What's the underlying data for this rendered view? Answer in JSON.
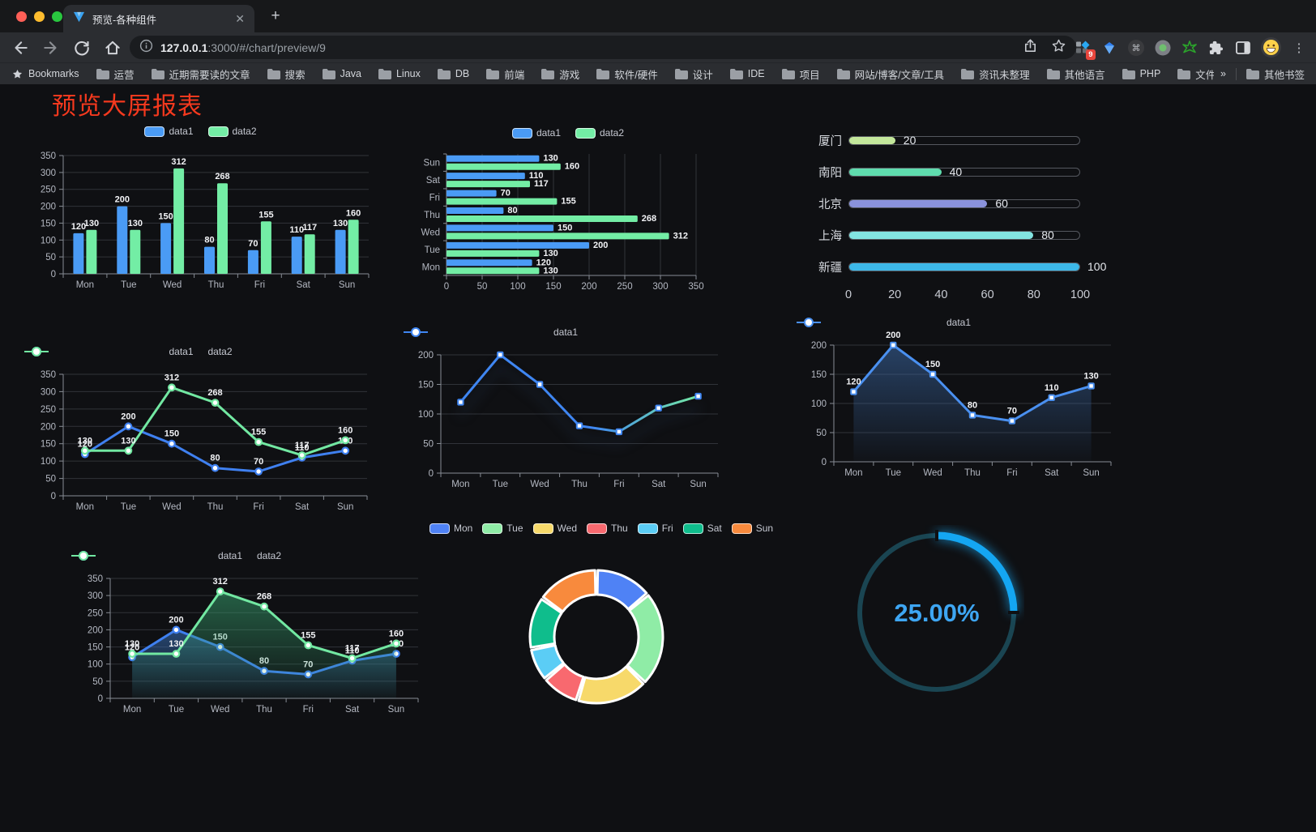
{
  "browser": {
    "tab_title": "预览-各种组件",
    "url_host": "127.0.0.1",
    "url_rest": ":3000/#/chart/preview/9",
    "extension_badge": "9",
    "bookmarks_label": "Bookmarks",
    "bookmarks": [
      "运营",
      "近期需要读的文章",
      "搜索",
      "Java",
      "Linux",
      "DB",
      "前端",
      "游戏",
      "软件/硬件",
      "设计",
      "IDE",
      "项目",
      "网站/博客/文章/工具",
      "资讯未整理",
      "其他语言",
      "PHP",
      "文件服务器"
    ],
    "bookmarks_overflow": "»",
    "other_bookmarks": "其他书签"
  },
  "page": {
    "title": "预览大屏报表",
    "title_color": "#f5391e",
    "background": "#0f1013"
  },
  "chart_data": [
    {
      "id": "bar1",
      "type": "bar",
      "legend": true,
      "categories": [
        "Mon",
        "Tue",
        "Wed",
        "Thu",
        "Fri",
        "Sat",
        "Sun"
      ],
      "series": [
        {
          "name": "data1",
          "color": "#4a9bf5",
          "values": [
            120,
            200,
            150,
            80,
            70,
            110,
            130
          ]
        },
        {
          "name": "data2",
          "color": "#73eda5",
          "values": [
            130,
            130,
            312,
            268,
            155,
            117,
            160
          ]
        }
      ],
      "ylim": [
        0,
        350
      ],
      "ystep": 50,
      "value_labels": true
    },
    {
      "id": "hbar1",
      "type": "hbar",
      "legend": true,
      "categories": [
        "Mon",
        "Tue",
        "Wed",
        "Thu",
        "Fri",
        "Sat",
        "Sun"
      ],
      "series": [
        {
          "name": "data1",
          "color": "#4a9bf5",
          "values": [
            120,
            200,
            150,
            80,
            70,
            110,
            130
          ]
        },
        {
          "name": "data2",
          "color": "#73eda5",
          "values": [
            130,
            130,
            312,
            268,
            155,
            117,
            160
          ]
        }
      ],
      "xlim": [
        0,
        350
      ],
      "xstep": 50,
      "value_labels": true
    },
    {
      "id": "progress1",
      "type": "progress",
      "max": 100,
      "axis_ticks": [
        0,
        20,
        40,
        60,
        80,
        100
      ],
      "items": [
        {
          "label": "厦门",
          "value": 20,
          "color": "#c3e79b"
        },
        {
          "label": "南阳",
          "value": 40,
          "color": "#5fdcae"
        },
        {
          "label": "北京",
          "value": 60,
          "color": "#8a92dc"
        },
        {
          "label": "上海",
          "value": 80,
          "color": "#83e4e1"
        },
        {
          "label": "新疆",
          "value": 100,
          "color": "#3db8e8"
        }
      ]
    },
    {
      "id": "line2",
      "type": "line",
      "legend": true,
      "markers": "circle",
      "categories": [
        "Mon",
        "Tue",
        "Wed",
        "Thu",
        "Fri",
        "Sat",
        "Sun"
      ],
      "series": [
        {
          "name": "data1",
          "color": "#3f80f0",
          "values": [
            120,
            200,
            150,
            80,
            70,
            110,
            130
          ]
        },
        {
          "name": "data2",
          "color": "#72e8a2",
          "values": [
            130,
            130,
            312,
            268,
            155,
            117,
            160
          ]
        }
      ],
      "ylim": [
        0,
        350
      ],
      "ystep": 50,
      "value_labels": true
    },
    {
      "id": "gradline",
      "type": "line",
      "legend": true,
      "markers": "rect",
      "shadow": true,
      "categories": [
        "Mon",
        "Tue",
        "Wed",
        "Thu",
        "Fri",
        "Sat",
        "Sun"
      ],
      "series": [
        {
          "name": "data1",
          "color": "#3f86f2",
          "gradient": [
            "#3f86f2",
            "#74e9a4"
          ],
          "values": [
            120,
            200,
            150,
            80,
            70,
            110,
            130
          ]
        }
      ],
      "ylim": [
        0,
        200
      ],
      "ystep": 50,
      "value_labels": false
    },
    {
      "id": "area1",
      "type": "line",
      "legend": true,
      "markers": "rect",
      "area": true,
      "categories": [
        "Mon",
        "Tue",
        "Wed",
        "Thu",
        "Fri",
        "Sat",
        "Sun"
      ],
      "series": [
        {
          "name": "data1",
          "color": "#4a90f0",
          "area_color": "#3c6aa8",
          "values": [
            120,
            200,
            150,
            80,
            70,
            110,
            130
          ]
        }
      ],
      "ylim": [
        0,
        200
      ],
      "ystep": 50,
      "value_labels": true
    },
    {
      "id": "area2",
      "type": "line",
      "legend": true,
      "markers": "circle",
      "area": true,
      "categories": [
        "Mon",
        "Tue",
        "Wed",
        "Thu",
        "Fri",
        "Sat",
        "Sun"
      ],
      "series": [
        {
          "name": "data1",
          "color": "#3f80f0",
          "area_color": "#3a74c0",
          "values": [
            120,
            200,
            150,
            80,
            70,
            110,
            130
          ]
        },
        {
          "name": "data2",
          "color": "#72e8a2",
          "area_color": "#37a06e",
          "values": [
            130,
            130,
            312,
            268,
            155,
            117,
            160
          ]
        }
      ],
      "ylim": [
        0,
        350
      ],
      "ystep": 50,
      "value_labels": true
    },
    {
      "id": "donut1",
      "type": "donut",
      "legend": true,
      "items": [
        {
          "label": "Mon",
          "value": 120,
          "color": "#4f82f5"
        },
        {
          "label": "Tue",
          "value": 200,
          "color": "#8feca6"
        },
        {
          "label": "Wed",
          "value": 150,
          "color": "#f7d96a"
        },
        {
          "label": "Thu",
          "value": 80,
          "color": "#f8696f"
        },
        {
          "label": "Fri",
          "value": 70,
          "color": "#5bcdf5"
        },
        {
          "label": "Sat",
          "value": 110,
          "color": "#0fbd8c"
        },
        {
          "label": "Sun",
          "value": 130,
          "color": "#f88a3d"
        }
      ]
    },
    {
      "id": "gauge1",
      "type": "gauge",
      "value": 25,
      "label": "25.00%",
      "color": "#14a6f2",
      "track": "#1a4552",
      "text_color": "#3ea6f3"
    }
  ]
}
